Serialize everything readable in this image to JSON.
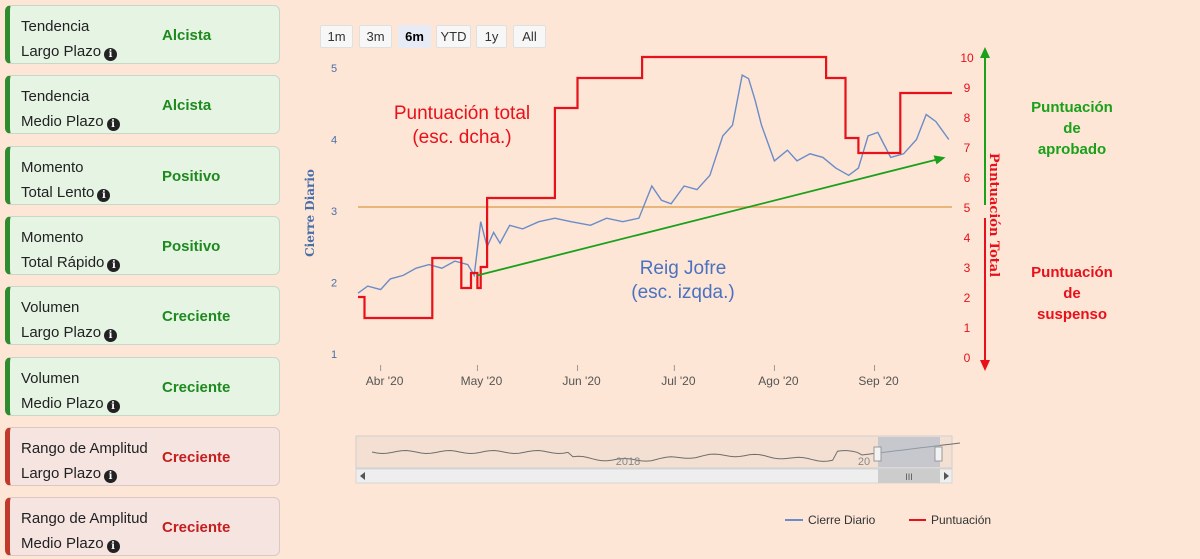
{
  "indicators": [
    {
      "line1": "Tendencia",
      "line2": "Largo Plazo",
      "status": "Alcista",
      "tone": "green"
    },
    {
      "line1": "Tendencia",
      "line2": "Medio Plazo",
      "status": "Alcista",
      "tone": "green"
    },
    {
      "line1": "Momento",
      "line2": "Total Lento",
      "status": "Positivo",
      "tone": "green"
    },
    {
      "line1": "Momento",
      "line2": "Total Rápido",
      "status": "Positivo",
      "tone": "green"
    },
    {
      "line1": "Volumen",
      "line2": "Largo Plazo",
      "status": "Creciente",
      "tone": "green"
    },
    {
      "line1": "Volumen",
      "line2": "Medio Plazo",
      "status": "Creciente",
      "tone": "green"
    },
    {
      "line1": "Rango de Amplitud",
      "line2": "Largo Plazo",
      "status": "Creciente",
      "tone": "red"
    },
    {
      "line1": "Rango de Amplitud",
      "line2": "Medio Plazo",
      "status": "Creciente",
      "tone": "red"
    }
  ],
  "info_icon": "info-circle-icon",
  "range_buttons": [
    "1m",
    "3m",
    "6m",
    "YTD",
    "1y",
    "All"
  ],
  "range_selected": "6m",
  "annotations": {
    "score_title_line1": "Puntuación total",
    "score_title_line2": "(esc. dcha.)",
    "stock_title_line1": "Reig Jofre",
    "stock_title_line2": "(esc. izqda.)",
    "pass_line1": "Puntuación",
    "pass_line2": "de",
    "pass_line3": "aprobado",
    "fail_line1": "Puntuación",
    "fail_line2": "de",
    "fail_line3": "suspenso"
  },
  "navigator": {
    "labels": [
      "2018",
      "20"
    ],
    "scroll_grip": "III"
  },
  "colors": {
    "price": "#6a8cc8",
    "score": "#e8101a",
    "threshold": "#e8b57a",
    "trend": "#1aa01a",
    "pass": "#1aa01a",
    "fail": "#e8101a",
    "left_axis": "#4a6fa8",
    "right_axis": "#e8101a"
  },
  "chart_data": {
    "type": "line",
    "x_ticks": [
      "Abr '20",
      "May '20",
      "Jun '20",
      "Jul '20",
      "Ago '20",
      "Sep '20"
    ],
    "y_left": {
      "label": "Cierre Diario",
      "ticks": [
        1,
        2,
        3,
        4,
        5
      ],
      "range": [
        1,
        5
      ]
    },
    "y_right": {
      "label": "Puntuación Total",
      "ticks": [
        0,
        1,
        2,
        3,
        4,
        5,
        6,
        7,
        8,
        9,
        10
      ],
      "range": [
        0,
        10
      ]
    },
    "threshold": 5,
    "legend": [
      {
        "name": "Cierre Diario",
        "color": "#6a8cc8"
      },
      {
        "name": "Puntuación",
        "color": "#e8101a"
      }
    ],
    "legend_position": "bottom-right",
    "series": [
      {
        "name": "Cierre Diario",
        "axis": "left",
        "x": [
          "2020-03-25",
          "2020-03-28",
          "2020-04-01",
          "2020-04-04",
          "2020-04-08",
          "2020-04-12",
          "2020-04-16",
          "2020-04-20",
          "2020-04-24",
          "2020-04-28",
          "2020-04-30",
          "2020-05-02",
          "2020-05-04",
          "2020-05-06",
          "2020-05-08",
          "2020-05-11",
          "2020-05-15",
          "2020-05-20",
          "2020-05-25",
          "2020-05-30",
          "2020-06-05",
          "2020-06-10",
          "2020-06-15",
          "2020-06-20",
          "2020-06-24",
          "2020-06-27",
          "2020-06-30",
          "2020-07-04",
          "2020-07-08",
          "2020-07-12",
          "2020-07-16",
          "2020-07-19",
          "2020-07-22",
          "2020-07-24",
          "2020-07-26",
          "2020-07-28",
          "2020-08-01",
          "2020-08-05",
          "2020-08-08",
          "2020-08-12",
          "2020-08-16",
          "2020-08-20",
          "2020-08-24",
          "2020-08-27",
          "2020-08-30",
          "2020-09-02",
          "2020-09-06",
          "2020-09-10",
          "2020-09-14",
          "2020-09-17",
          "2020-09-20",
          "2020-09-24"
        ],
        "values": [
          1.85,
          1.95,
          1.9,
          2.05,
          2.1,
          2.2,
          2.25,
          2.2,
          2.3,
          2.25,
          2.1,
          2.85,
          2.5,
          2.7,
          2.55,
          2.8,
          2.75,
          2.85,
          2.9,
          2.85,
          2.8,
          2.9,
          2.85,
          2.9,
          3.35,
          3.15,
          3.1,
          3.35,
          3.3,
          3.5,
          4.05,
          4.2,
          4.9,
          4.85,
          4.55,
          4.2,
          3.7,
          3.85,
          3.7,
          3.8,
          3.75,
          3.6,
          3.5,
          3.6,
          4.05,
          4.1,
          3.75,
          3.8,
          4.0,
          4.35,
          4.25,
          4.0
        ]
      },
      {
        "name": "Puntuación",
        "axis": "right",
        "x": [
          "2020-03-25",
          "2020-03-27",
          "2020-04-17",
          "2020-04-26",
          "2020-04-29",
          "2020-05-01",
          "2020-05-02",
          "2020-05-04",
          "2020-05-25",
          "2020-06-01",
          "2020-06-20",
          "2020-06-21",
          "2020-08-17",
          "2020-08-23",
          "2020-08-27",
          "2020-09-08",
          "2020-09-09",
          "2020-09-19"
        ],
        "values": [
          2,
          1.3,
          3.3,
          2.3,
          2.8,
          2.3,
          3,
          5.3,
          8.3,
          9.3,
          9.3,
          10,
          9.3,
          7.3,
          6.8,
          6.8,
          8.8,
          8.8
        ]
      },
      {
        "name": "trend-arrow",
        "axis": "left",
        "x": [
          "2020-05-01",
          "2020-09-23"
        ],
        "values": [
          2.1,
          3.75
        ]
      }
    ]
  }
}
